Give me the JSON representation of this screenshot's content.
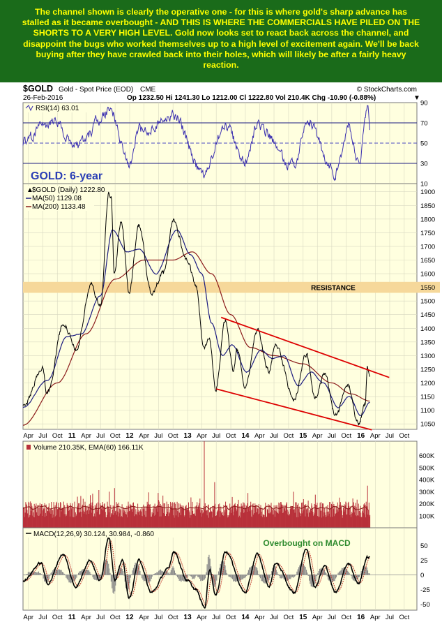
{
  "banner": {
    "text": "The channel shown is clearly the operative one - for this is where gold's sharp advance has stalled as it became overbought - AND THIS IS WHERE THE COMMERCIALS HAVE PILED ON THE SHORTS TO A VERY HIGH LEVEL. Gold now looks set to react back across the channel, and disappoint the bugs who worked themselves up to a high level of excitement again. We'll be back buying after they have crawled back into their holes, which will likely be after a fairly heavy reaction."
  },
  "header": {
    "symbol": "$GOLD",
    "name": "Gold - Spot Price (EOD)",
    "exchange": "CME",
    "date": "26-Feb-2016",
    "watermark": "© StockCharts.com",
    "quote": "Op 1232.50  Hi 1241.30  Lo 1212.00  Cl 1222.80  Vol 210.4K  Chg -10.90 (-0.88%)",
    "quote_arrow": "▼"
  },
  "colors": {
    "price": "#000000",
    "ma50": "#1b1b80",
    "ma200": "#8b1a1a",
    "channel": "#dd0000",
    "resistance_band": "#f6d89a",
    "rsi": "#3a2fb0",
    "volume": "#b8313a",
    "panel_bg": "#ffffdf",
    "annotation_blue": "#2b3fb5",
    "annotation_green": "#2e8b2e"
  },
  "chart_data": [
    {
      "type": "line",
      "panel": "rsi",
      "legend": "RSI(14) 63.01",
      "ylim": [
        10,
        90
      ],
      "ticks": [
        90,
        70,
        50,
        30,
        10
      ],
      "levels": [
        70,
        50,
        30
      ],
      "start": "2010-02-26",
      "end": "2016-02-26",
      "anchors": [
        [
          "2010-02-26",
          52
        ],
        [
          "2010-09-01",
          72
        ],
        [
          "2011-02-01",
          48
        ],
        [
          "2011-09-01",
          82
        ],
        [
          "2011-12-29",
          28
        ],
        [
          "2012-02-28",
          62
        ],
        [
          "2012-10-05",
          78
        ],
        [
          "2013-04-15",
          18
        ],
        [
          "2013-08-28",
          68
        ],
        [
          "2013-12-31",
          30
        ],
        [
          "2014-03-17",
          68
        ],
        [
          "2014-11-05",
          26
        ],
        [
          "2015-01-22",
          74
        ],
        [
          "2015-07-24",
          20
        ],
        [
          "2015-10-14",
          66
        ],
        [
          "2015-12-17",
          28
        ],
        [
          "2016-02-11",
          86
        ],
        [
          "2016-02-26",
          63.01
        ]
      ],
      "noise": 9
    },
    {
      "type": "line",
      "panel": "price",
      "title": "GOLD: 6-year",
      "legend": [
        "$GOLD (Daily) 1222.80",
        "MA(50) 1129.08",
        "MA(200) 1133.48"
      ],
      "ylim": [
        1030,
        1930
      ],
      "ticks": [
        1900,
        1850,
        1800,
        1750,
        1700,
        1650,
        1600,
        1550,
        1500,
        1450,
        1400,
        1350,
        1300,
        1250,
        1200,
        1150,
        1100,
        1050
      ],
      "start": "2010-02-26",
      "end": "2016-02-26",
      "series": [
        {
          "name": "$GOLD",
          "anchors": [
            [
              "2010-02-26",
              1110
            ],
            [
              "2010-06-28",
              1255
            ],
            [
              "2010-07-28",
              1160
            ],
            [
              "2010-11-09",
              1420
            ],
            [
              "2011-01-28",
              1320
            ],
            [
              "2011-05-02",
              1560
            ],
            [
              "2011-07-01",
              1480
            ],
            [
              "2011-08-22",
              1900
            ],
            [
              "2011-09-06",
              1880
            ],
            [
              "2011-09-26",
              1600
            ],
            [
              "2011-11-08",
              1795
            ],
            [
              "2011-12-29",
              1530
            ],
            [
              "2012-02-28",
              1780
            ],
            [
              "2012-05-16",
              1530
            ],
            [
              "2012-08-01",
              1600
            ],
            [
              "2012-10-04",
              1795
            ],
            [
              "2012-12-28",
              1650
            ],
            [
              "2013-02-20",
              1560
            ],
            [
              "2013-04-15",
              1330
            ],
            [
              "2013-05-17",
              1370
            ],
            [
              "2013-06-28",
              1180
            ],
            [
              "2013-08-28",
              1430
            ],
            [
              "2013-10-15",
              1250
            ],
            [
              "2013-11-10",
              1320
            ],
            [
              "2013-12-31",
              1190
            ],
            [
              "2014-03-17",
              1390
            ],
            [
              "2014-06-02",
              1240
            ],
            [
              "2014-07-10",
              1345
            ],
            [
              "2014-11-05",
              1140
            ],
            [
              "2015-01-22",
              1305
            ],
            [
              "2015-03-17",
              1145
            ],
            [
              "2015-05-18",
              1230
            ],
            [
              "2015-07-24",
              1080
            ],
            [
              "2015-10-14",
              1190
            ],
            [
              "2015-12-17",
              1050
            ],
            [
              "2016-01-28",
              1120
            ],
            [
              "2016-02-11",
              1260
            ],
            [
              "2016-02-26",
              1222.8
            ]
          ],
          "noise": 14
        },
        {
          "name": "MA(50)",
          "anchors": [
            [
              "2010-02-26",
              1110
            ],
            [
              "2010-08-01",
              1210
            ],
            [
              "2010-12-01",
              1370
            ],
            [
              "2011-03-01",
              1380
            ],
            [
              "2011-07-01",
              1520
            ],
            [
              "2011-09-15",
              1760
            ],
            [
              "2011-12-15",
              1680
            ],
            [
              "2012-03-01",
              1690
            ],
            [
              "2012-06-15",
              1600
            ],
            [
              "2012-10-25",
              1760
            ],
            [
              "2013-01-20",
              1670
            ],
            [
              "2013-04-01",
              1600
            ],
            [
              "2013-06-01",
              1420
            ],
            [
              "2013-08-10",
              1300
            ],
            [
              "2013-10-10",
              1340
            ],
            [
              "2014-01-10",
              1240
            ],
            [
              "2014-04-10",
              1320
            ],
            [
              "2014-06-20",
              1290
            ],
            [
              "2014-09-01",
              1300
            ],
            [
              "2014-12-01",
              1190
            ],
            [
              "2015-02-20",
              1240
            ],
            [
              "2015-05-10",
              1200
            ],
            [
              "2015-08-10",
              1110
            ],
            [
              "2015-10-20",
              1150
            ],
            [
              "2015-12-31",
              1080
            ],
            [
              "2016-02-26",
              1129.08
            ]
          ],
          "noise": 2
        },
        {
          "name": "MA(200)",
          "anchors": [
            [
              "2010-02-26",
              1045
            ],
            [
              "2010-10-01",
              1200
            ],
            [
              "2011-04-01",
              1380
            ],
            [
              "2011-10-01",
              1580
            ],
            [
              "2012-04-01",
              1650
            ],
            [
              "2012-10-01",
              1650
            ],
            [
              "2013-02-01",
              1680
            ],
            [
              "2013-06-01",
              1600
            ],
            [
              "2013-10-01",
              1450
            ],
            [
              "2014-02-01",
              1330
            ],
            [
              "2014-07-01",
              1300
            ],
            [
              "2015-01-01",
              1270
            ],
            [
              "2015-07-01",
              1200
            ],
            [
              "2015-11-01",
              1160
            ],
            [
              "2016-02-26",
              1133.48
            ]
          ],
          "noise": 0
        }
      ],
      "channel": {
        "upper": [
          [
            "2013-08-01",
            1440
          ],
          [
            "2016-06-28",
            1220
          ]
        ],
        "lower": [
          [
            "2013-07-01",
            1178
          ],
          [
            "2016-03-10",
            1028
          ]
        ]
      },
      "resistance": {
        "from": 1530,
        "to": 1570,
        "label": "RESISTANCE"
      }
    },
    {
      "type": "bar",
      "panel": "volume",
      "legend": "Volume 210.35K, EMA(60) 166.11K",
      "ylim": [
        0,
        720000
      ],
      "ticks": [
        "600K",
        "500K",
        "400K",
        "300K",
        "200K",
        "100K"
      ],
      "tick_values": [
        600000,
        500000,
        400000,
        300000,
        200000,
        100000
      ],
      "start": "2010-02-26",
      "end": "2016-02-26",
      "base": 150000,
      "spikes": [
        [
          "2013-04-15",
          720000
        ],
        [
          "2011-09-26",
          330000
        ],
        [
          "2013-06-20",
          380000
        ],
        [
          "2011-08-22",
          300000
        ],
        [
          "2016-02-11",
          350000
        ]
      ],
      "ema_level": 166110
    },
    {
      "type": "line",
      "panel": "macd",
      "legend": "MACD(12,26,9) 30.124, 30.984, -0.860",
      "annotation": "Overbought on MACD",
      "ylim": [
        -60,
        80
      ],
      "ticks": [
        50,
        25,
        0,
        -25,
        -50
      ],
      "start": "2010-02-26",
      "end": "2016-02-26",
      "anchors": [
        [
          "2010-02-26",
          -10
        ],
        [
          "2010-06-20",
          20
        ],
        [
          "2010-08-01",
          -15
        ],
        [
          "2010-11-05",
          35
        ],
        [
          "2011-01-25",
          -20
        ],
        [
          "2011-04-25",
          25
        ],
        [
          "2011-06-28",
          -10
        ],
        [
          "2011-08-22",
          65
        ],
        [
          "2011-10-01",
          -10
        ],
        [
          "2011-11-15",
          25
        ],
        [
          "2011-12-29",
          -40
        ],
        [
          "2012-03-01",
          25
        ],
        [
          "2012-05-16",
          -30
        ],
        [
          "2012-09-01",
          10
        ],
        [
          "2012-10-05",
          40
        ],
        [
          "2013-01-01",
          -10
        ],
        [
          "2013-02-20",
          -25
        ],
        [
          "2013-04-20",
          -55
        ],
        [
          "2013-05-20",
          10
        ],
        [
          "2013-06-28",
          -35
        ],
        [
          "2013-08-28",
          40
        ],
        [
          "2013-12-31",
          -30
        ],
        [
          "2014-03-17",
          35
        ],
        [
          "2014-06-02",
          -20
        ],
        [
          "2014-07-10",
          20
        ],
        [
          "2014-11-05",
          -30
        ],
        [
          "2015-01-22",
          45
        ],
        [
          "2015-03-17",
          -20
        ],
        [
          "2015-05-18",
          15
        ],
        [
          "2015-07-24",
          -30
        ],
        [
          "2015-10-14",
          20
        ],
        [
          "2015-12-17",
          -15
        ],
        [
          "2016-02-11",
          30
        ],
        [
          "2016-02-26",
          30.124
        ]
      ],
      "signal_lag": 9,
      "noise": 3
    }
  ],
  "x_axis": {
    "ticks": [
      {
        "label": "Apr",
        "date": "2010-04-01"
      },
      {
        "label": "Jul",
        "date": "2010-07-01"
      },
      {
        "label": "Oct",
        "date": "2010-10-01"
      },
      {
        "label": "11",
        "date": "2011-01-01",
        "bold": true
      },
      {
        "label": "Apr",
        "date": "2011-04-01"
      },
      {
        "label": "Jul",
        "date": "2011-07-01"
      },
      {
        "label": "Oct",
        "date": "2011-10-01"
      },
      {
        "label": "12",
        "date": "2012-01-01",
        "bold": true
      },
      {
        "label": "Apr",
        "date": "2012-04-01"
      },
      {
        "label": "Jul",
        "date": "2012-07-01"
      },
      {
        "label": "Oct",
        "date": "2012-10-01"
      },
      {
        "label": "13",
        "date": "2013-01-01",
        "bold": true
      },
      {
        "label": "Apr",
        "date": "2013-04-01"
      },
      {
        "label": "Jul",
        "date": "2013-07-01"
      },
      {
        "label": "Oct",
        "date": "2013-10-01"
      },
      {
        "label": "14",
        "date": "2014-01-01",
        "bold": true
      },
      {
        "label": "Apr",
        "date": "2014-04-01"
      },
      {
        "label": "Jul",
        "date": "2014-07-01"
      },
      {
        "label": "Oct",
        "date": "2014-10-01"
      },
      {
        "label": "15",
        "date": "2015-01-01",
        "bold": true
      },
      {
        "label": "Apr",
        "date": "2015-04-01"
      },
      {
        "label": "Jul",
        "date": "2015-07-01"
      },
      {
        "label": "Oct",
        "date": "2015-10-01"
      },
      {
        "label": "16",
        "date": "2016-01-01",
        "bold": true
      },
      {
        "label": "Apr",
        "date": "2016-04-01"
      },
      {
        "label": "Jul",
        "date": "2016-07-01"
      },
      {
        "label": "Oct",
        "date": "2016-10-01"
      }
    ],
    "axis_end": "2016-12-20"
  }
}
